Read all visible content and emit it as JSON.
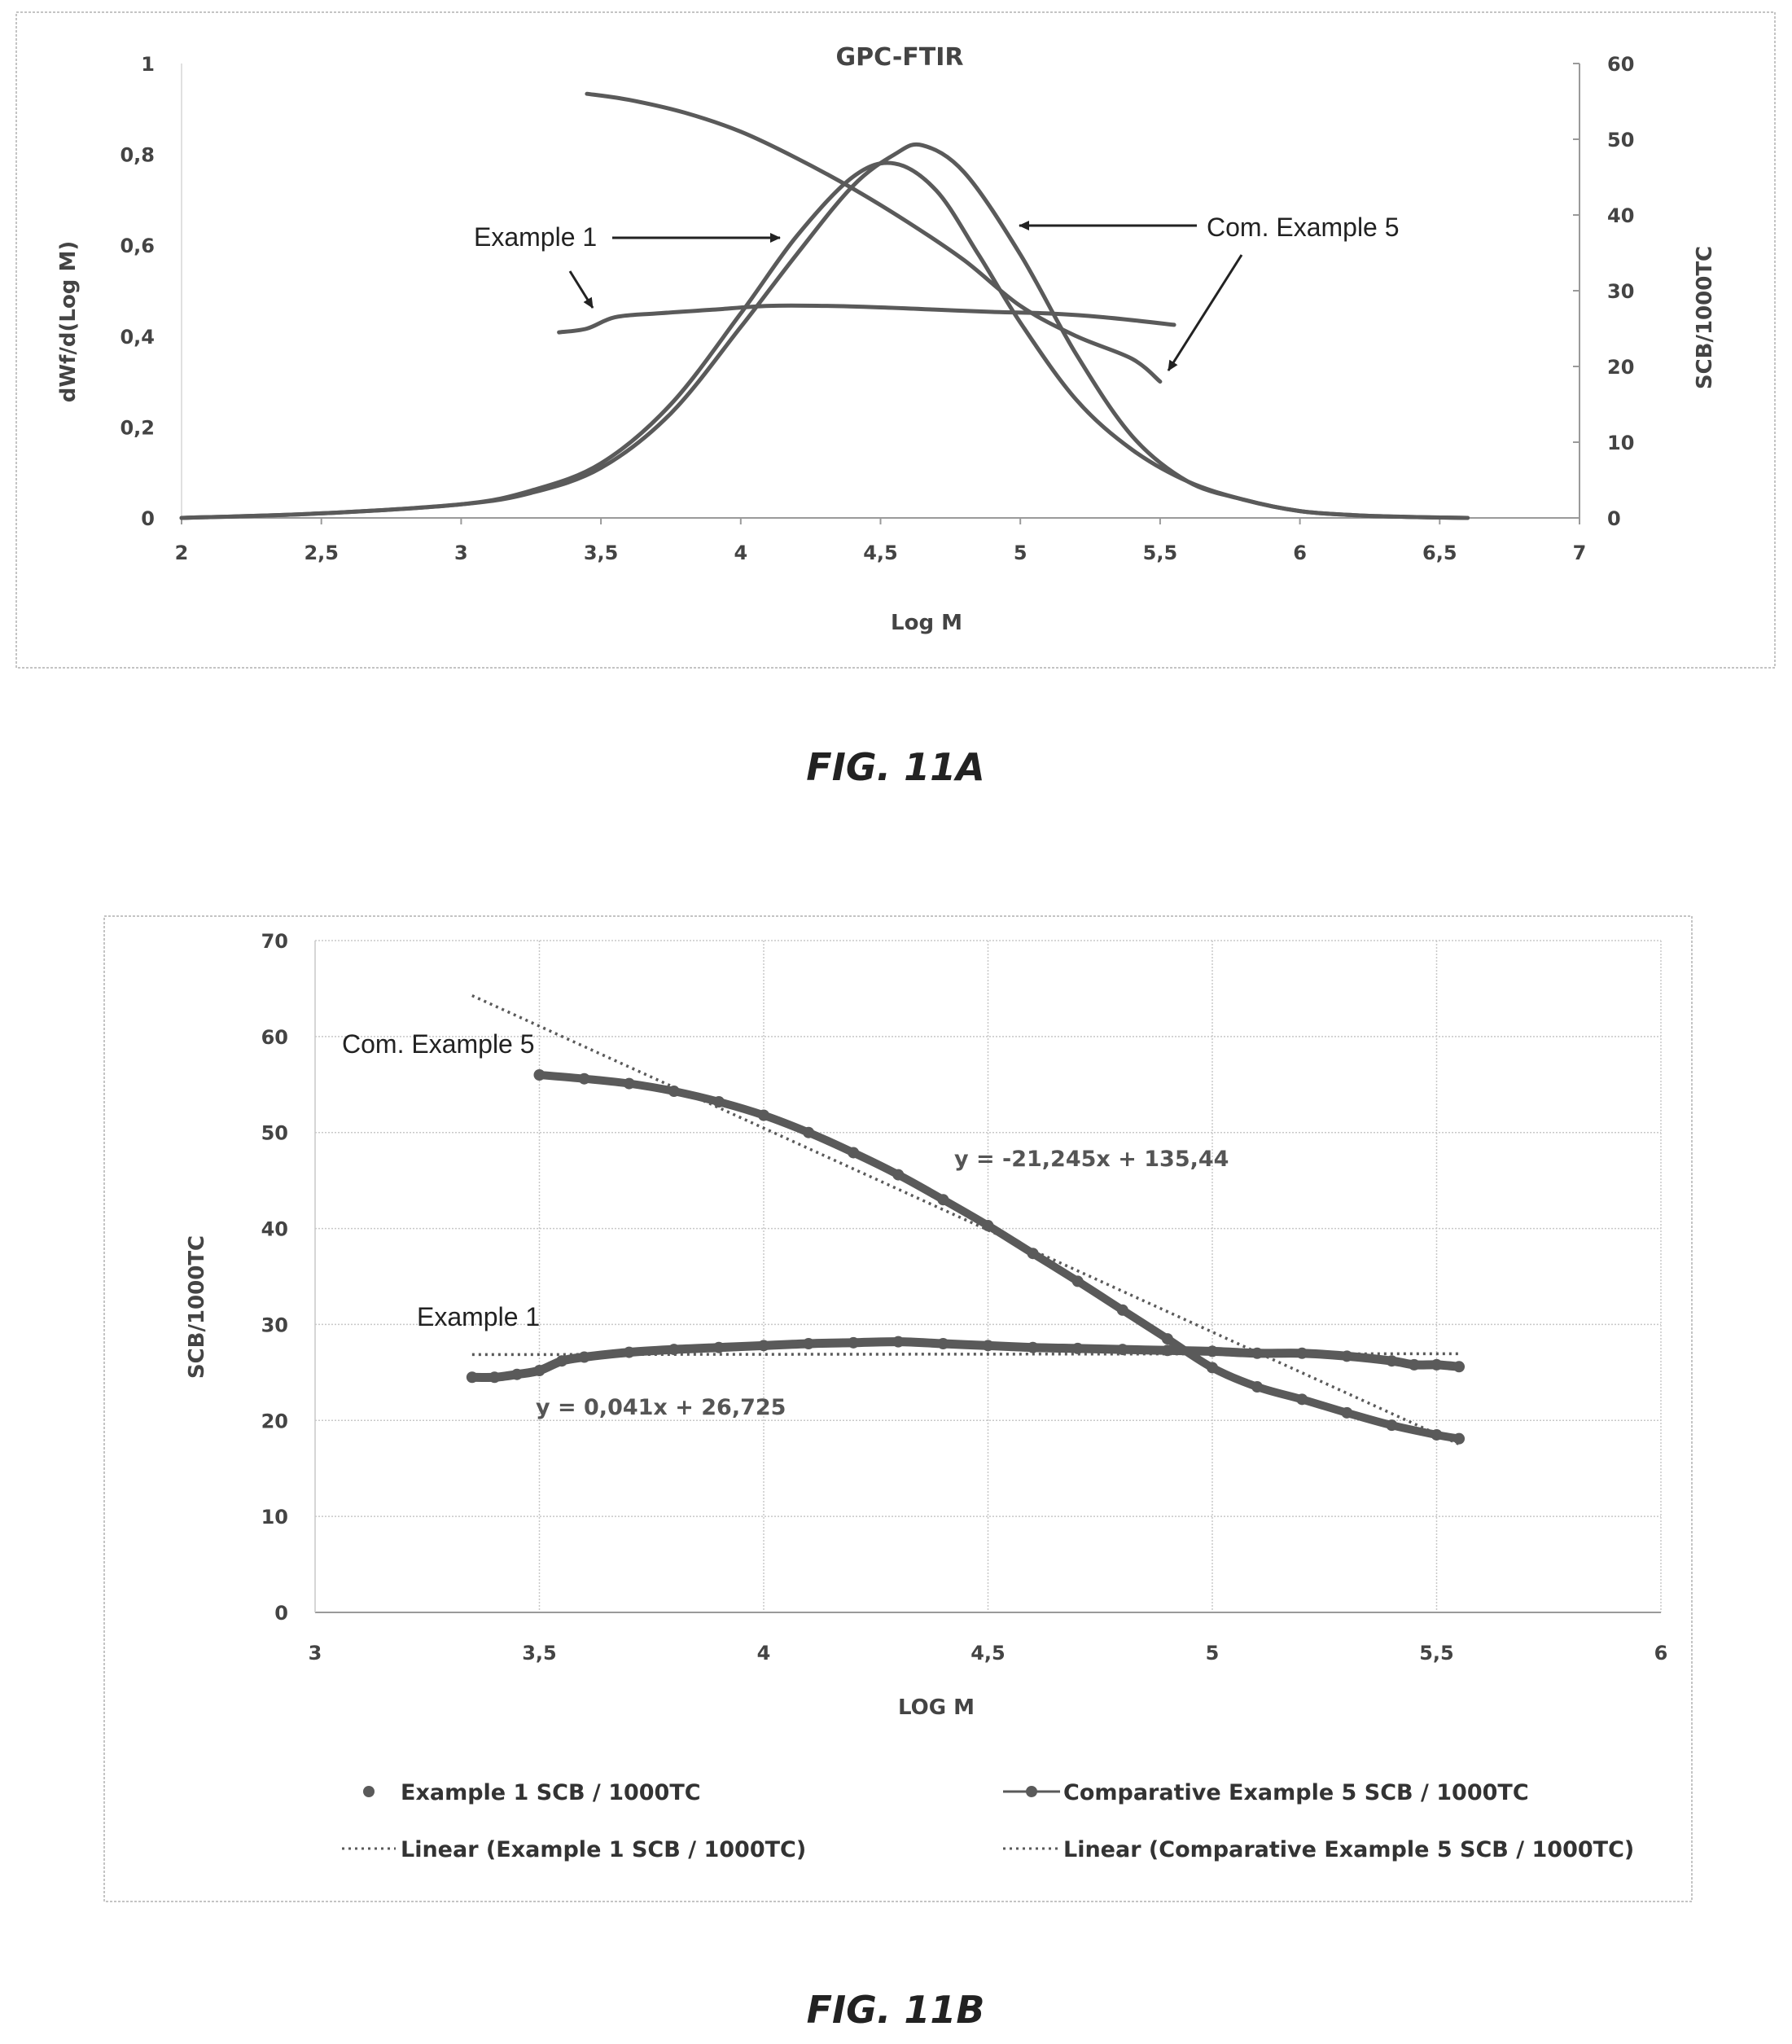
{
  "chart_data": [
    {
      "type": "line",
      "title": "GPC-FTIR",
      "xlabel": "Log M",
      "ylabel": "dWf/d(Log M)",
      "y2label": "SCB/1000TC",
      "xlim": [
        2,
        7
      ],
      "ylim": [
        0,
        1
      ],
      "y2lim": [
        0,
        60
      ],
      "x_ticks": [
        "2",
        "2,5",
        "3",
        "3,5",
        "4",
        "4,5",
        "5",
        "5,5",
        "6",
        "6,5",
        "7"
      ],
      "y_ticks": [
        "0",
        "0,2",
        "0,4",
        "0,6",
        "0,8",
        "1"
      ],
      "y2_ticks": [
        "0",
        "10",
        "20",
        "30",
        "40",
        "50",
        "60"
      ],
      "grid": false,
      "series": [
        {
          "name": "Example 1",
          "axis": "left",
          "x": [
            2.0,
            2.5,
            3.0,
            3.25,
            3.5,
            3.75,
            4.0,
            4.2,
            4.4,
            4.55,
            4.7,
            4.85,
            5.0,
            5.2,
            5.4,
            5.6,
            5.8,
            6.0,
            6.2,
            6.4,
            6.6
          ],
          "y": [
            0.0,
            0.01,
            0.03,
            0.06,
            0.12,
            0.25,
            0.45,
            0.62,
            0.75,
            0.78,
            0.72,
            0.58,
            0.43,
            0.26,
            0.15,
            0.08,
            0.04,
            0.015,
            0.006,
            0.002,
            0.0
          ]
        },
        {
          "name": "Com. Example 5",
          "axis": "left",
          "x": [
            2.0,
            2.5,
            3.0,
            3.25,
            3.5,
            3.75,
            4.0,
            4.2,
            4.4,
            4.55,
            4.65,
            4.8,
            5.0,
            5.2,
            5.4,
            5.6,
            5.8,
            6.0,
            6.2,
            6.4,
            6.6
          ],
          "y": [
            0.0,
            0.01,
            0.03,
            0.055,
            0.11,
            0.23,
            0.42,
            0.58,
            0.73,
            0.8,
            0.82,
            0.76,
            0.58,
            0.36,
            0.18,
            0.08,
            0.04,
            0.015,
            0.006,
            0.002,
            0.0
          ]
        },
        {
          "name": "Example 1 SCB",
          "axis": "right",
          "x": [
            3.35,
            3.45,
            3.55,
            3.7,
            3.9,
            4.1,
            4.3,
            4.5,
            4.7,
            4.9,
            5.1,
            5.3,
            5.55
          ],
          "y": [
            24.5,
            25,
            26.5,
            27,
            27.5,
            28,
            28,
            27.8,
            27.5,
            27.2,
            27,
            26.5,
            25.5
          ]
        },
        {
          "name": "Com. Example 5 SCB",
          "axis": "right",
          "x": [
            3.45,
            3.6,
            3.8,
            4.0,
            4.2,
            4.4,
            4.6,
            4.8,
            5.0,
            5.2,
            5.4,
            5.5
          ],
          "y": [
            56,
            55.2,
            53.5,
            51,
            47.5,
            43.5,
            39,
            34,
            28,
            24,
            21,
            18
          ]
        }
      ],
      "annotations": [
        "Example 1",
        "Com. Example 5"
      ],
      "caption": "FIG. 11A"
    },
    {
      "type": "scatter",
      "xlabel": "LOG M",
      "ylabel": "SCB/1000TC",
      "xlim": [
        3,
        6
      ],
      "ylim": [
        0,
        70
      ],
      "x_ticks": [
        "3",
        "3,5",
        "4",
        "4,5",
        "5",
        "5,5",
        "6"
      ],
      "y_ticks": [
        "0",
        "10",
        "20",
        "30",
        "40",
        "50",
        "60",
        "70"
      ],
      "grid": true,
      "legend_position": "bottom",
      "series": [
        {
          "name": "Example 1 SCB / 1000TC",
          "marker": "dot",
          "x": [
            3.35,
            3.4,
            3.45,
            3.5,
            3.55,
            3.6,
            3.7,
            3.8,
            3.9,
            4.0,
            4.1,
            4.2,
            4.3,
            4.4,
            4.5,
            4.6,
            4.7,
            4.8,
            4.9,
            5.0,
            5.1,
            5.2,
            5.3,
            5.4,
            5.45,
            5.5,
            5.55
          ],
          "y": [
            24.5,
            24.5,
            24.8,
            25.2,
            26.2,
            26.6,
            27.1,
            27.4,
            27.6,
            27.8,
            28.0,
            28.1,
            28.2,
            28.0,
            27.8,
            27.6,
            27.5,
            27.4,
            27.3,
            27.2,
            27.0,
            27.0,
            26.7,
            26.2,
            25.8,
            25.8,
            25.6
          ]
        },
        {
          "name": "Comparative Example 5 SCB / 1000TC",
          "marker": "line-dot",
          "x": [
            3.5,
            3.6,
            3.7,
            3.8,
            3.9,
            4.0,
            4.1,
            4.2,
            4.3,
            4.4,
            4.5,
            4.6,
            4.7,
            4.8,
            4.9,
            5.0,
            5.1,
            5.2,
            5.3,
            5.4,
            5.5,
            5.55
          ],
          "y": [
            56.0,
            55.6,
            55.1,
            54.3,
            53.2,
            51.8,
            50.0,
            47.9,
            45.6,
            43.0,
            40.3,
            37.4,
            34.5,
            31.5,
            28.5,
            25.5,
            23.5,
            22.2,
            20.8,
            19.5,
            18.5,
            18.1
          ]
        },
        {
          "name": "Linear (Example 1 SCB / 1000TC)",
          "marker": "dotted",
          "x": [
            3.35,
            5.55
          ],
          "y": [
            26.862,
            26.953
          ]
        },
        {
          "name": "Linear (Comparative Example 5 SCB / 1000TC)",
          "marker": "dotted",
          "x": [
            3.35,
            5.55
          ],
          "y": [
            64.269,
            17.53
          ]
        }
      ],
      "annotations": [
        "Com. Example 5",
        "Example 1"
      ],
      "equations": [
        "y = -21,245x + 135,44",
        "y = 0,041x + 26,725"
      ],
      "caption": "FIG. 11B"
    }
  ],
  "colors": {
    "curve": "#5a5a5a",
    "axis": "#9a9a9a",
    "grid": "#c8c8c8",
    "frame": "#bdbdbd"
  }
}
